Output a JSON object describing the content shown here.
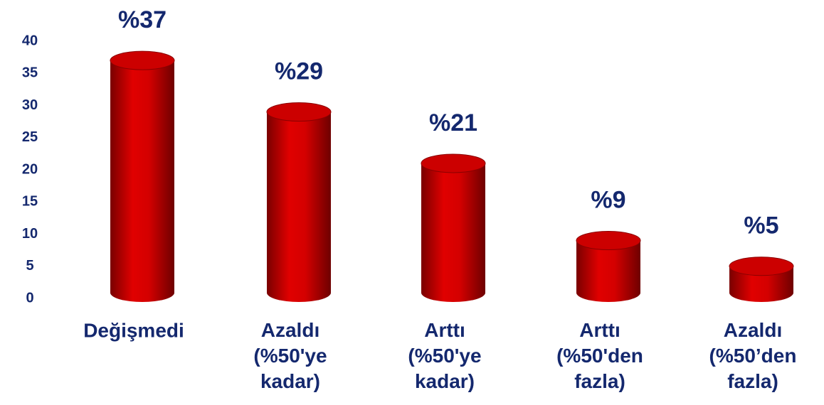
{
  "chart_data": {
    "type": "bar",
    "categories": [
      "Değişmedi",
      "Azaldı\n(%50'ye\nkadar)",
      "Arttı\n(%50'ye\nkadar)",
      "Arttı\n(%50'den\nfazla)",
      "Azaldı\n(%50’den\nfazla)"
    ],
    "values": [
      37,
      29,
      21,
      9,
      5
    ],
    "value_labels": [
      "%37",
      "%29",
      "%21",
      "%9",
      "%5"
    ],
    "color": "#cc0000",
    "ylim": [
      0,
      40
    ],
    "yticks": [
      0,
      5,
      10,
      15,
      20,
      25,
      30,
      35,
      40
    ],
    "grid": false
  }
}
